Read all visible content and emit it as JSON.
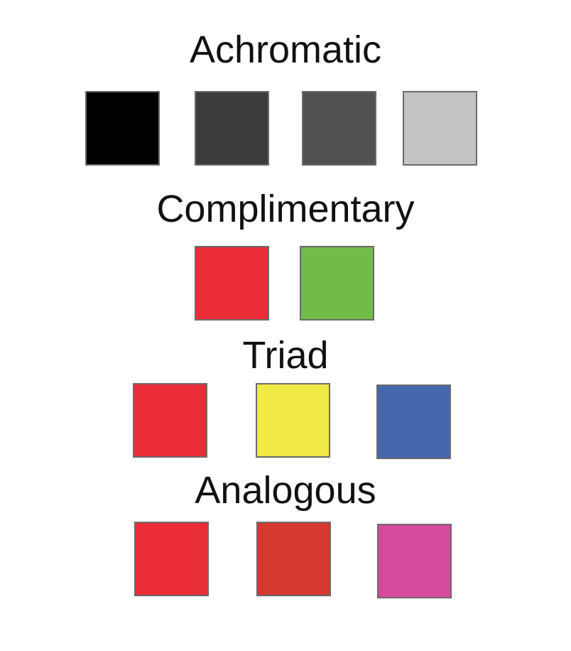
{
  "groups": [
    {
      "title": "Achromatic",
      "swatches": [
        {
          "color": "#000000"
        },
        {
          "color": "#3b3b3b"
        },
        {
          "color": "#525050"
        },
        {
          "color": "#c4c3c2"
        }
      ]
    },
    {
      "title": "Complimentary",
      "swatches": [
        {
          "color": "#ea2c37"
        },
        {
          "color": "#70bb4a"
        }
      ]
    },
    {
      "title": "Triad",
      "swatches": [
        {
          "color": "#ea2c37"
        },
        {
          "color": "#f1e948"
        },
        {
          "color": "#4467ad"
        }
      ]
    },
    {
      "title": "Analogous",
      "swatches": [
        {
          "color": "#ea2c37"
        },
        {
          "color": "#d5392f"
        },
        {
          "color": "#d64a9b"
        }
      ]
    }
  ]
}
